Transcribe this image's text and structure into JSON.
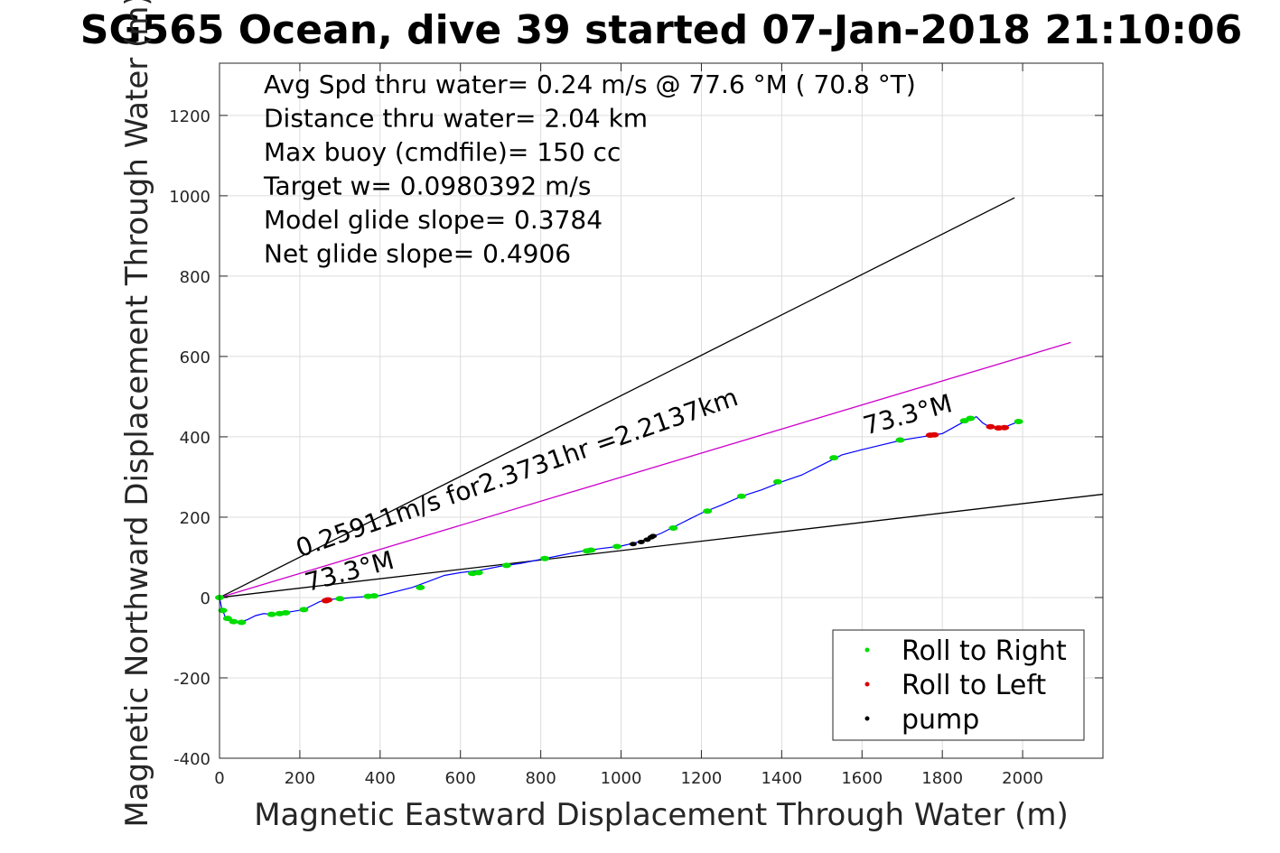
{
  "chart_data": {
    "type": "line",
    "title": "SG565 Ocean, dive 39 started 07-Jan-2018 21:10:06",
    "xlabel": "Magnetic Eastward Displacement Through Water (m)",
    "ylabel": "Magnetic Northward Displacement Through Water (m)",
    "xlim": [
      0,
      2200
    ],
    "ylim": [
      -400,
      1330
    ],
    "xticks": [
      0,
      200,
      400,
      600,
      800,
      1000,
      1200,
      1400,
      1600,
      1800,
      2000
    ],
    "yticks": [
      -400,
      -200,
      0,
      200,
      400,
      600,
      800,
      1000,
      1200
    ],
    "grid": true,
    "stats": [
      "Avg Spd thru water=  0.24 m/s @  77.6 °M ( 70.8 °T)",
      "Distance thru water=  2.04 km",
      "Max buoy (cmdfile)= 150 cc",
      "Target w= 0.0980392 m/s",
      "Model glide slope= 0.3784",
      "Net glide slope= 0.4906"
    ],
    "annotations": [
      {
        "text": "0.25911m/s for2.3731hr =2.2137km",
        "x": 200,
        "y": 100
      },
      {
        "text": "73.3°M",
        "x": 220,
        "y": 15
      },
      {
        "text": "73.3°M",
        "x": 1610,
        "y": 405
      }
    ],
    "reference_lines": [
      {
        "name": "upper-bound",
        "color": "#000000",
        "points": [
          [
            0,
            0
          ],
          [
            1980,
            995
          ]
        ]
      },
      {
        "name": "lower-bound",
        "color": "#000000",
        "points": [
          [
            0,
            0
          ],
          [
            2200,
            257
          ]
        ]
      },
      {
        "name": "heading",
        "color": "#cc00cc",
        "points": [
          [
            0,
            0
          ],
          [
            2120,
            635
          ]
        ]
      }
    ],
    "series": [
      {
        "name": "",
        "color": "#0000ff",
        "x": [
          0,
          5,
          15,
          30,
          50,
          70,
          90,
          110,
          130,
          150,
          180,
          210,
          230,
          250,
          270,
          300,
          330,
          360,
          400,
          440,
          480,
          520,
          560,
          600,
          650,
          700,
          750,
          800,
          850,
          900,
          950,
          1000,
          1050,
          1100,
          1150,
          1200,
          1250,
          1300,
          1350,
          1400,
          1450,
          1500,
          1550,
          1600,
          1650,
          1700,
          1750,
          1800,
          1840,
          1870,
          1885,
          1900,
          1920,
          1950,
          1970,
          1990
        ],
        "y": [
          0,
          -25,
          -50,
          -60,
          -62,
          -55,
          -45,
          -40,
          -42,
          -40,
          -35,
          -30,
          -20,
          -10,
          -5,
          -3,
          0,
          2,
          5,
          15,
          25,
          40,
          55,
          62,
          68,
          78,
          85,
          95,
          105,
          115,
          122,
          128,
          140,
          160,
          185,
          210,
          230,
          252,
          268,
          288,
          305,
          330,
          355,
          368,
          380,
          392,
          400,
          408,
          430,
          445,
          450,
          435,
          423,
          422,
          430,
          438
        ]
      }
    ],
    "markers": {
      "roll_right": {
        "color": "#00dd00",
        "points": [
          [
            0,
            0
          ],
          [
            8,
            -32
          ],
          [
            20,
            -52
          ],
          [
            35,
            -60
          ],
          [
            55,
            -62
          ],
          [
            130,
            -42
          ],
          [
            150,
            -40
          ],
          [
            165,
            -38
          ],
          [
            210,
            -30
          ],
          [
            300,
            -3
          ],
          [
            370,
            3
          ],
          [
            385,
            4
          ],
          [
            500,
            25
          ],
          [
            630,
            60
          ],
          [
            645,
            62
          ],
          [
            715,
            80
          ],
          [
            810,
            97
          ],
          [
            915,
            116
          ],
          [
            925,
            118
          ],
          [
            990,
            127
          ],
          [
            1130,
            173
          ],
          [
            1215,
            215
          ],
          [
            1300,
            252
          ],
          [
            1390,
            288
          ],
          [
            1530,
            348
          ],
          [
            1695,
            392
          ],
          [
            1855,
            440
          ],
          [
            1870,
            446
          ],
          [
            1990,
            438
          ]
        ]
      },
      "roll_left": {
        "color": "#dd0000",
        "points": [
          [
            265,
            -8
          ],
          [
            270,
            -6
          ],
          [
            1770,
            404
          ],
          [
            1780,
            405
          ],
          [
            1920,
            425
          ],
          [
            1940,
            422
          ],
          [
            1955,
            423
          ]
        ]
      },
      "pump": {
        "color": "#000000",
        "points": [
          [
            1030,
            133
          ],
          [
            1050,
            138
          ],
          [
            1065,
            144
          ],
          [
            1075,
            150
          ],
          [
            1080,
            153
          ]
        ]
      }
    },
    "legend": {
      "placement": "bottom-right",
      "entries": [
        {
          "label": "Roll to Right",
          "color": "#00dd00"
        },
        {
          "label": "Roll to Left",
          "color": "#dd0000"
        },
        {
          "label": "pump",
          "color": "#000000"
        }
      ]
    }
  }
}
